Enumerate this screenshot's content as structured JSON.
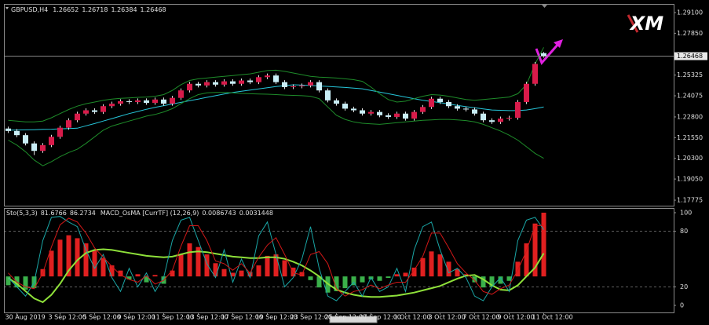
{
  "logo": "XM",
  "chart_data": [
    {
      "type": "candlestick",
      "symbol": "GBPUSD,H4",
      "open": [
        1.221,
        1.2195,
        1.217,
        1.212,
        1.2075,
        1.211,
        1.216,
        1.2215,
        1.226,
        1.23,
        1.232,
        1.231,
        1.2345,
        1.236,
        1.2375,
        1.237,
        1.238,
        1.2365,
        1.2385,
        1.236,
        1.2395,
        1.244,
        1.248,
        1.247,
        1.249,
        1.2475,
        1.2495,
        1.248,
        1.25,
        1.249,
        1.252,
        1.253,
        1.249,
        1.246,
        1.2465,
        1.247,
        1.249,
        1.244,
        1.238,
        1.236,
        1.233,
        1.232,
        1.23,
        1.231,
        1.229,
        1.228,
        1.23,
        1.227,
        1.231,
        1.234,
        1.239,
        1.237,
        1.2345,
        1.233,
        1.2325,
        1.23,
        1.226,
        1.225,
        1.227,
        1.2275,
        1.237,
        1.248,
        1.26652
      ],
      "high": [
        1.2222,
        1.2207,
        1.2182,
        1.2132,
        1.2122,
        1.2172,
        1.2227,
        1.2272,
        1.2312,
        1.2332,
        1.2332,
        1.2357,
        1.2372,
        1.2387,
        1.2387,
        1.2392,
        1.2392,
        1.2397,
        1.2397,
        1.2407,
        1.2452,
        1.2492,
        1.2492,
        1.2502,
        1.2502,
        1.2507,
        1.2507,
        1.2512,
        1.2512,
        1.2532,
        1.2542,
        1.2542,
        1.2502,
        1.2477,
        1.2482,
        1.2502,
        1.2502,
        1.2452,
        1.2392,
        1.2372,
        1.2342,
        1.2332,
        1.2322,
        1.2322,
        1.2302,
        1.2312,
        1.2312,
        1.2322,
        1.2352,
        1.2402,
        1.2402,
        1.2382,
        1.2357,
        1.2342,
        1.2337,
        1.2312,
        1.2272,
        1.2282,
        1.2287,
        1.2382,
        1.2492,
        1.2612,
        1.26718
      ],
      "low": [
        1.2183,
        1.2158,
        1.2108,
        1.205,
        1.2063,
        1.2098,
        1.2148,
        1.2203,
        1.2248,
        1.2288,
        1.2298,
        1.2298,
        1.2333,
        1.2348,
        1.2358,
        1.2358,
        1.2353,
        1.2353,
        1.2348,
        1.2348,
        1.2383,
        1.2428,
        1.2458,
        1.2458,
        1.2463,
        1.2463,
        1.2468,
        1.2468,
        1.2478,
        1.2478,
        1.2508,
        1.2478,
        1.2448,
        1.2448,
        1.2453,
        1.2458,
        1.2428,
        1.2368,
        1.2348,
        1.2318,
        1.2308,
        1.2288,
        1.2288,
        1.2278,
        1.2268,
        1.2268,
        1.2258,
        1.2258,
        1.2298,
        1.2328,
        1.2358,
        1.2333,
        1.2318,
        1.2313,
        1.2288,
        1.2248,
        1.2238,
        1.2238,
        1.2258,
        1.2263,
        1.2358,
        1.2468,
        1.26384
      ],
      "close": [
        1.2195,
        1.217,
        1.212,
        1.2075,
        1.211,
        1.216,
        1.2215,
        1.226,
        1.23,
        1.232,
        1.231,
        1.2345,
        1.236,
        1.2375,
        1.237,
        1.238,
        1.2365,
        1.2385,
        1.236,
        1.2395,
        1.244,
        1.248,
        1.247,
        1.249,
        1.2475,
        1.2495,
        1.248,
        1.25,
        1.249,
        1.252,
        1.253,
        1.249,
        1.246,
        1.2465,
        1.247,
        1.249,
        1.244,
        1.238,
        1.236,
        1.233,
        1.232,
        1.23,
        1.231,
        1.229,
        1.228,
        1.23,
        1.227,
        1.231,
        1.234,
        1.239,
        1.237,
        1.2345,
        1.233,
        1.2325,
        1.23,
        1.226,
        1.225,
        1.227,
        1.2275,
        1.237,
        1.248,
        1.26,
        1.26468
      ],
      "up_color": "#d81b4a",
      "down_color": "#c8eef6",
      "wick_color": "#e0e0e0",
      "last_color": "#9a9a9a",
      "overlays": [
        {
          "color": "#26c6da",
          "values": [
            1.22,
            1.2201,
            1.2202,
            1.2203,
            1.2205,
            1.2206,
            1.2208,
            1.221,
            1.2212,
            1.2226,
            1.224,
            1.2255,
            1.227,
            1.2285,
            1.23,
            1.2313,
            1.2326,
            1.2338,
            1.2348,
            1.2358,
            1.2368,
            1.2378,
            1.2388,
            1.2398,
            1.2408,
            1.2418,
            1.2428,
            1.2435,
            1.2442,
            1.2449,
            1.2456,
            1.2463,
            1.2469,
            1.2474,
            1.2472,
            1.247,
            1.2467,
            1.2464,
            1.2461,
            1.2458,
            1.2454,
            1.245,
            1.244,
            1.243,
            1.242,
            1.241,
            1.24,
            1.239,
            1.238,
            1.2373,
            1.2366,
            1.2358,
            1.235,
            1.2342,
            1.2335,
            1.2328,
            1.2322,
            1.232,
            1.2318,
            1.2318,
            1.2322,
            1.233,
            1.234
          ]
        },
        {
          "color": "#1e8c2a",
          "values": [
            1.226,
            1.2255,
            1.225,
            1.225,
            1.2255,
            1.2275,
            1.23,
            1.2325,
            1.2345,
            1.236,
            1.237,
            1.238,
            1.2388,
            1.2392,
            1.2395,
            1.2398,
            1.24,
            1.2405,
            1.2415,
            1.244,
            1.2475,
            1.25,
            1.251,
            1.2515,
            1.252,
            1.2525,
            1.253,
            1.2535,
            1.254,
            1.255,
            1.256,
            1.2562,
            1.2555,
            1.2545,
            1.2535,
            1.2525,
            1.252,
            1.2518,
            1.2515,
            1.251,
            1.2505,
            1.2495,
            1.246,
            1.242,
            1.2385,
            1.237,
            1.2375,
            1.239,
            1.2405,
            1.2415,
            1.2412,
            1.2405,
            1.2395,
            1.2385,
            1.238,
            1.2385,
            1.239,
            1.2395,
            1.24,
            1.242,
            1.2475,
            1.26,
            1.27
          ]
        },
        {
          "color": "#1e8c2a",
          "values": [
            1.214,
            1.211,
            1.207,
            1.202,
            1.1985,
            1.201,
            1.204,
            1.2065,
            1.2085,
            1.212,
            1.216,
            1.22,
            1.2225,
            1.224,
            1.2255,
            1.227,
            1.2285,
            1.2295,
            1.231,
            1.233,
            1.236,
            1.239,
            1.2415,
            1.2425,
            1.2428,
            1.2428,
            1.2425,
            1.2422,
            1.242,
            1.2418,
            1.2417,
            1.2415,
            1.2412,
            1.241,
            1.2408,
            1.2405,
            1.239,
            1.234,
            1.229,
            1.2265,
            1.225,
            1.2242,
            1.2238,
            1.2235,
            1.224,
            1.2245,
            1.225,
            1.2255,
            1.226,
            1.2262,
            1.2265,
            1.2265,
            1.2262,
            1.2258,
            1.225,
            1.2235,
            1.2215,
            1.2195,
            1.217,
            1.214,
            1.21,
            1.206,
            1.203
          ]
        }
      ],
      "ylim": [
        1.17443,
        1.29479
      ],
      "yticks": [
        {
          "value": 1.291,
          "label": "1.29100"
        },
        {
          "value": 1.2785,
          "label": "1.27850"
        },
        {
          "value": 1.25325,
          "label": "1.25325"
        },
        {
          "value": 1.24075,
          "label": "1.24075"
        },
        {
          "value": 1.228,
          "label": "1.22800"
        },
        {
          "value": 1.2155,
          "label": "1.21550"
        },
        {
          "value": 1.203,
          "label": "1.20300"
        },
        {
          "value": 1.1905,
          "label": "1.19050"
        },
        {
          "value": 1.17775,
          "label": "1.17775"
        }
      ]
    },
    {
      "type": "indicator",
      "stoch_label": "Sto(5,3,3)",
      "macd_label": "MACD_OsMA [CurrTF] (12,26,9)",
      "categories": [
        null,
        "30 Aug 2019",
        null,
        null,
        null,
        null,
        "3 Sep 12:00",
        null,
        null,
        null,
        "5 Sep 12:00",
        null,
        null,
        null,
        "9 Sep 12:00",
        null,
        null,
        null,
        "11 Sep 12:00",
        null,
        null,
        null,
        "13 Sep 12:00",
        null,
        null,
        null,
        "17 Sep 12:00",
        null,
        null,
        null,
        "19 Sep 12:00",
        null,
        null,
        null,
        "23 Sep 12:00",
        null,
        null,
        null,
        "25 Sep 12:00",
        null,
        null,
        null,
        "27 Sep 12:00",
        null,
        null,
        null,
        "1 Oct 12:00",
        null,
        null,
        null,
        "3 Oct 12:00",
        null,
        null,
        null,
        "7 Oct 12:00",
        null,
        null,
        null,
        "9 Oct 12:00",
        null,
        null,
        null,
        "11 Oct 12:00"
      ],
      "series": [
        {
          "kind": "bar",
          "axis": "y2",
          "up_color": "#e02020",
          "down_color": "#3ab04a",
          "values": [
            -0.0012,
            -0.0015,
            -0.0018,
            -0.0016,
            0.001,
            0.0035,
            0.005,
            0.0056,
            0.0052,
            0.0045,
            0.0035,
            0.0025,
            0.0015,
            0.0008,
            -0.0004,
            0.0003,
            -0.0008,
            0.0002,
            -0.001,
            0.0008,
            0.003,
            0.0045,
            0.004,
            0.003,
            0.0018,
            0.001,
            0.0005,
            0.0008,
            0.0006,
            0.0015,
            0.0028,
            0.003,
            0.0022,
            0.0012,
            0.0006,
            -0.0005,
            -0.0015,
            -0.0022,
            -0.002,
            -0.0016,
            -0.0012,
            -0.0008,
            -0.0004,
            -0.0006,
            -0.0002,
            0.0003,
            0.0005,
            0.0012,
            0.0025,
            0.0034,
            0.003,
            0.002,
            0.001,
            0.0003,
            -0.0008,
            -0.0015,
            -0.0014,
            -0.001,
            -0.0006,
            0.002,
            0.0045,
            0.0072,
            0.0086743
          ]
        },
        {
          "kind": "line",
          "axis": "y2",
          "color": "#8ee03a",
          "values": [
            -0.0002,
            -0.001,
            -0.002,
            -0.003,
            -0.0035,
            -0.0025,
            -0.001,
            0.0008,
            0.0022,
            0.0032,
            0.0036,
            0.0037,
            0.0036,
            0.0034,
            0.0032,
            0.003,
            0.0028,
            0.0027,
            0.0026,
            0.0027,
            0.003,
            0.0033,
            0.0034,
            0.0033,
            0.0031,
            0.0029,
            0.0027,
            0.0026,
            0.0025,
            0.0025,
            0.0026,
            0.0026,
            0.0024,
            0.002,
            0.0015,
            0.0008,
            0.0,
            -0.001,
            -0.0018,
            -0.0022,
            -0.0025,
            -0.0027,
            -0.0028,
            -0.0028,
            -0.0027,
            -0.0026,
            -0.0024,
            -0.0022,
            -0.0019,
            -0.0016,
            -0.0013,
            -0.0008,
            -0.0003,
            0.0001,
            0.0002,
            -0.0004,
            -0.0012,
            -0.0018,
            -0.0019,
            -0.0012,
            0.0,
            0.0012,
            0.0031448
          ]
        },
        {
          "kind": "line",
          "color": "#1aa6a6",
          "values": [
            30,
            20,
            10,
            25,
            70,
            95,
            96,
            90,
            85,
            60,
            40,
            55,
            30,
            15,
            40,
            20,
            35,
            15,
            30,
            70,
            92,
            95,
            70,
            45,
            30,
            60,
            25,
            50,
            30,
            75,
            90,
            55,
            20,
            30,
            50,
            85,
            40,
            10,
            5,
            15,
            25,
            10,
            30,
            15,
            20,
            40,
            15,
            60,
            85,
            90,
            60,
            35,
            40,
            30,
            10,
            5,
            20,
            30,
            15,
            70,
            92,
            95,
            81.6766
          ]
        },
        {
          "kind": "line",
          "color": "#d01818",
          "values": [
            35,
            25,
            20,
            18,
            35,
            63,
            87,
            94,
            90,
            78,
            62,
            52,
            42,
            33,
            28,
            25,
            32,
            23,
            27,
            38,
            64,
            86,
            86,
            70,
            48,
            45,
            38,
            45,
            35,
            52,
            65,
            73,
            55,
            35,
            33,
            55,
            58,
            45,
            18,
            10,
            15,
            17,
            22,
            18,
            22,
            25,
            25,
            38,
            53,
            78,
            78,
            62,
            45,
            35,
            27,
            15,
            12,
            18,
            22,
            38,
            59,
            86,
            86.2734
          ]
        }
      ],
      "ylim": [
        -7.6,
        104.2
      ],
      "yticks": [
        0,
        20,
        80,
        100
      ],
      "levels": [
        20,
        80
      ],
      "y2lim": [
        -0.0049,
        0.0092
      ]
    }
  ]
}
